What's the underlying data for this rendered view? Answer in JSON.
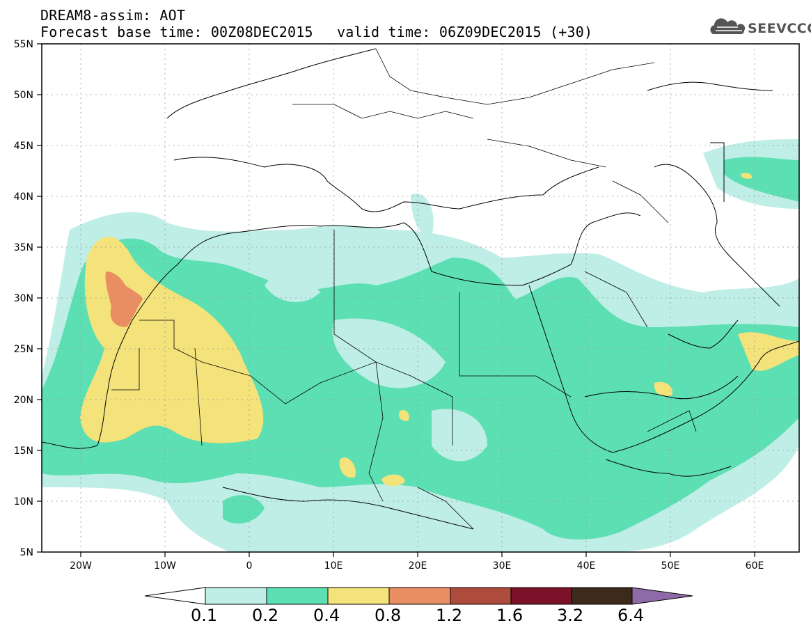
{
  "header": {
    "line1": "DREAM8-assim: AOT",
    "line2": "Forecast base time: 00Z08DEC2015",
    "line3": "valid time: 06Z09DEC2015 (+30)"
  },
  "logo": {
    "text": "SEEVCCC",
    "icon": "cloud-icon"
  },
  "axes": {
    "lat_labels": [
      "55N",
      "50N",
      "45N",
      "40N",
      "35N",
      "30N",
      "25N",
      "20N",
      "15N",
      "10N",
      "5N"
    ],
    "lon_labels": [
      "20W",
      "10W",
      "0",
      "10E",
      "20E",
      "30E",
      "40E",
      "50E",
      "60E"
    ]
  },
  "colorbar": {
    "labels": [
      "0.1",
      "0.2",
      "0.4",
      "0.8",
      "1.2",
      "1.6",
      "3.2",
      "6.4"
    ],
    "colors": [
      "#bfeee6",
      "#5ddfb4",
      "#f4e27a",
      "#e98e62",
      "#ad4c3c",
      "#7b1029",
      "#3c2a1a",
      "#8e6aa8"
    ]
  }
}
